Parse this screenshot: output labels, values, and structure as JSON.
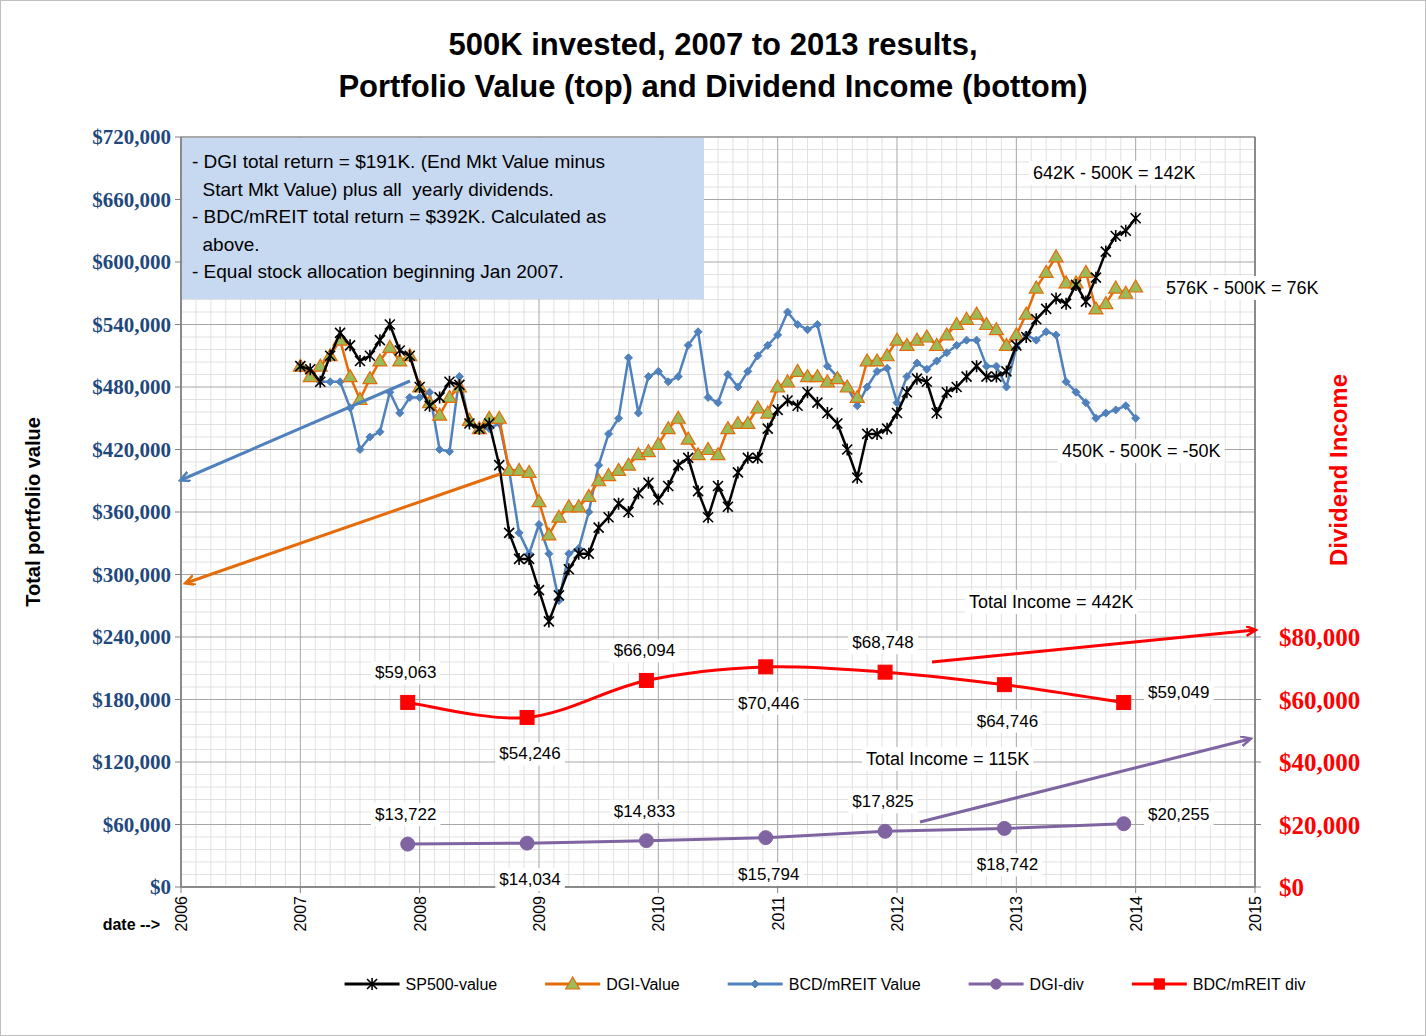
{
  "chart_data": {
    "type": "line",
    "title": "500K invested, 2007 to 2013 results,",
    "subtitle": "Portfolio Value (top) and Dividend Income (bottom)",
    "xlabel": "date -->",
    "ylabel": "Total portfolio value",
    "y2label": "Dividend Income",
    "text_box": [
      "- DGI total return = $191K. (End Mkt Value minus",
      "  Start Mkt Value) plus all  yearly dividends.",
      "- BDC/mREIT total return = $392K. Calculated as",
      "  above.",
      "- Equal stock allocation beginning Jan 2007."
    ],
    "annotations": [
      "642K - 500K = 142K",
      "576K - 500K = 76K",
      "450K - 500K = -50K",
      "Total Income = 442K",
      "Total Income = 115K"
    ],
    "xlim": [
      2006,
      2015
    ],
    "xticks": [
      2006,
      2007,
      2008,
      2009,
      2010,
      2011,
      2012,
      2013,
      2014,
      2015
    ],
    "ylim": [
      0,
      720000
    ],
    "yticks": [
      {
        "value": 0,
        "label": "$0"
      },
      {
        "value": 60000,
        "label": "$60,000"
      },
      {
        "value": 120000,
        "label": "$120,000"
      },
      {
        "value": 180000,
        "label": "$180,000"
      },
      {
        "value": 240000,
        "label": "$240,000"
      },
      {
        "value": 300000,
        "label": "$300,000"
      },
      {
        "value": 360000,
        "label": "$360,000"
      },
      {
        "value": 420000,
        "label": "$420,000"
      },
      {
        "value": 480000,
        "label": "$480,000"
      },
      {
        "value": 540000,
        "label": "$540,000"
      },
      {
        "value": 600000,
        "label": "$600,000"
      },
      {
        "value": 660000,
        "label": "$660,000"
      },
      {
        "value": 720000,
        "label": "$720,000"
      }
    ],
    "y2lim": [
      0,
      240000
    ],
    "y2ticks": [
      {
        "value": 0,
        "label": "$0"
      },
      {
        "value": 20000,
        "label": "$20,000"
      },
      {
        "value": 40000,
        "label": "$40,000"
      },
      {
        "value": 60000,
        "label": "$60,000"
      },
      {
        "value": 80000,
        "label": "$80,000"
      }
    ],
    "grid": true,
    "legend": "bottom",
    "x": [
      2007,
      2007.083,
      2007.167,
      2007.25,
      2007.333,
      2007.417,
      2007.5,
      2007.583,
      2007.667,
      2007.75,
      2007.833,
      2007.917,
      2008,
      2008.083,
      2008.167,
      2008.25,
      2008.333,
      2008.417,
      2008.5,
      2008.583,
      2008.667,
      2008.75,
      2008.833,
      2008.917,
      2009,
      2009.083,
      2009.167,
      2009.25,
      2009.333,
      2009.417,
      2009.5,
      2009.583,
      2009.667,
      2009.75,
      2009.833,
      2009.917,
      2010,
      2010.083,
      2010.167,
      2010.25,
      2010.333,
      2010.417,
      2010.5,
      2010.583,
      2010.667,
      2010.75,
      2010.833,
      2010.917,
      2011,
      2011.083,
      2011.167,
      2011.25,
      2011.333,
      2011.417,
      2011.5,
      2011.583,
      2011.667,
      2011.75,
      2011.833,
      2011.917,
      2012,
      2012.083,
      2012.167,
      2012.25,
      2012.333,
      2012.417,
      2012.5,
      2012.583,
      2012.667,
      2012.75,
      2012.833,
      2012.917,
      2013,
      2013.083,
      2013.167,
      2013.25,
      2013.333,
      2013.417,
      2013.5,
      2013.583,
      2013.667,
      2013.75,
      2013.833,
      2013.917,
      2014
    ],
    "series": [
      {
        "name": "SP500-value",
        "color": "#000000",
        "marker": "asterisk",
        "line_style": "solid",
        "values": [
          500000,
          497000,
          485000,
          510000,
          532000,
          520000,
          505000,
          510000,
          525000,
          540000,
          515000,
          510000,
          480000,
          462000,
          470000,
          485000,
          482000,
          445000,
          440000,
          445000,
          405000,
          340000,
          315000,
          315000,
          285000,
          255000,
          280000,
          305000,
          320000,
          320000,
          345000,
          355000,
          368000,
          360000,
          378000,
          388000,
          372000,
          385000,
          405000,
          412000,
          380000,
          355000,
          385000,
          365000,
          398000,
          412000,
          412000,
          440000,
          458000,
          467000,
          462000,
          475000,
          465000,
          455000,
          445000,
          420000,
          393000,
          435000,
          435000,
          440000,
          455000,
          475000,
          488000,
          485000,
          455000,
          475000,
          480000,
          490000,
          500000,
          490000,
          490000,
          495000,
          520000,
          528000,
          545000,
          555000,
          565000,
          560000,
          578000,
          562000,
          585000,
          610000,
          625000,
          630000,
          642000
        ]
      },
      {
        "name": "DGI-Value",
        "color": "#e46c0a",
        "marker": "triangle",
        "line_style": "solid",
        "values": [
          500000,
          490000,
          500000,
          510000,
          525000,
          490000,
          468000,
          488000,
          505000,
          518000,
          505000,
          510000,
          480000,
          465000,
          453000,
          470000,
          480000,
          448000,
          440000,
          450000,
          450000,
          400000,
          400000,
          398000,
          370000,
          338000,
          355000,
          365000,
          365000,
          375000,
          390000,
          395000,
          400000,
          405000,
          415000,
          418000,
          425000,
          440000,
          450000,
          430000,
          415000,
          420000,
          415000,
          440000,
          445000,
          445000,
          460000,
          455000,
          480000,
          485000,
          495000,
          490000,
          490000,
          485000,
          488000,
          480000,
          470000,
          505000,
          505000,
          510000,
          525000,
          520000,
          525000,
          528000,
          520000,
          530000,
          540000,
          545000,
          550000,
          540000,
          535000,
          520000,
          530000,
          550000,
          575000,
          590000,
          605000,
          580000,
          580000,
          590000,
          555000,
          560000,
          575000,
          570000,
          576000
        ]
      },
      {
        "name": "BCD/mREIT Value",
        "color": "#4f81bd",
        "marker": "diamond",
        "line_style": "solid",
        "values": [
          500000,
          495000,
          485000,
          485000,
          485000,
          460000,
          420000,
          432000,
          437000,
          475000,
          455000,
          470000,
          470000,
          475000,
          420000,
          418000,
          490000,
          445000,
          440000,
          440000,
          445000,
          400000,
          340000,
          320000,
          348000,
          320000,
          275000,
          320000,
          325000,
          360000,
          405000,
          435000,
          450000,
          508000,
          455000,
          490000,
          495000,
          485000,
          490000,
          520000,
          533000,
          470000,
          465000,
          492000,
          480000,
          495000,
          510000,
          520000,
          530000,
          552000,
          540000,
          535000,
          540000,
          500000,
          490000,
          480000,
          462000,
          480000,
          495000,
          498000,
          465000,
          490000,
          503000,
          497000,
          505000,
          513000,
          520000,
          525000,
          525000,
          500000,
          500000,
          480000,
          518000,
          530000,
          525000,
          533000,
          530000,
          485000,
          475000,
          465000,
          450000,
          455000,
          458000,
          462000,
          450000
        ]
      },
      {
        "name": "DGI-div",
        "color": "#8064a2",
        "marker": "circle",
        "line_style": "solid",
        "axis": "y2",
        "data_labels": true,
        "x": [
          2007.9,
          2008.9,
          2009.9,
          2010.9,
          2011.9,
          2012.9,
          2013.9
        ],
        "values": [
          13722,
          14034,
          14833,
          15794,
          17825,
          18742,
          20255
        ],
        "value_labels": [
          "$13,722",
          "$14,034",
          "$14,833",
          "$15,794",
          "$17,825",
          "$18,742",
          "$20,255"
        ]
      },
      {
        "name": "BDC/mREIT div",
        "color": "#ff0000",
        "marker": "square",
        "line_style": "smooth",
        "axis": "y2",
        "data_labels": true,
        "x": [
          2007.9,
          2008.9,
          2009.9,
          2010.9,
          2011.9,
          2012.9,
          2013.9
        ],
        "values": [
          59063,
          54246,
          66094,
          70446,
          68748,
          64746,
          59049
        ],
        "value_labels": [
          "$59,063",
          "$54,246",
          "$66,094",
          "$70,446",
          "$68,748",
          "$64,746",
          "$59,049"
        ]
      }
    ]
  }
}
